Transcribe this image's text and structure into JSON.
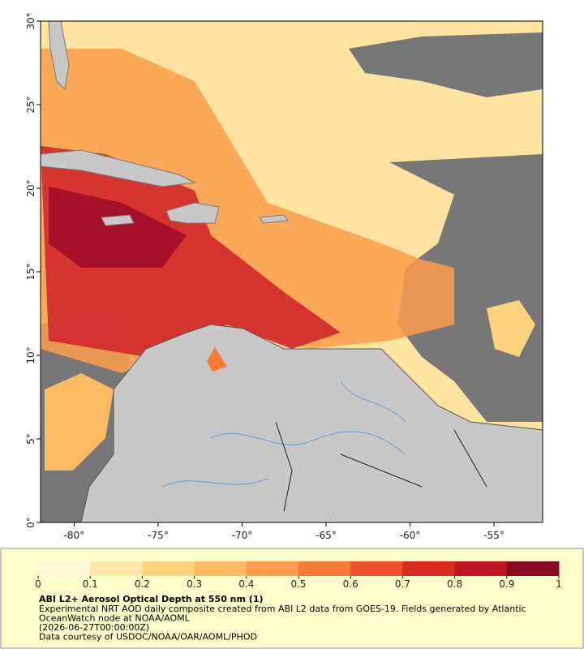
{
  "map": {
    "xlim": [
      -82,
      -52.1
    ],
    "ylim": [
      0,
      30
    ],
    "xticks": [
      {
        "value": -80,
        "label": "-80°"
      },
      {
        "value": -75,
        "label": "-75°"
      },
      {
        "value": -70,
        "label": "-70°"
      },
      {
        "value": -65,
        "label": "-65°"
      },
      {
        "value": -60,
        "label": "-60°"
      },
      {
        "value": -55,
        "label": "-55°"
      }
    ],
    "yticks": [
      {
        "value": 0,
        "label": "0°"
      },
      {
        "value": 5,
        "label": "5°"
      },
      {
        "value": 10,
        "label": "10°"
      },
      {
        "value": 15,
        "label": "15°"
      },
      {
        "value": 20,
        "label": "20°"
      },
      {
        "value": 25,
        "label": "25°"
      },
      {
        "value": 30,
        "label": "30°"
      }
    ]
  },
  "colorbar": {
    "lim": [
      0,
      1
    ],
    "ticks": [
      0,
      0.1,
      0.2,
      0.3,
      0.4,
      0.5,
      0.6,
      0.7,
      0.8,
      0.9,
      1
    ],
    "colors": [
      "#fff7d6",
      "#fee9a8",
      "#fdd27e",
      "#fdb862",
      "#fb9d4c",
      "#f77c3c",
      "#ee4f2c",
      "#db2a22",
      "#c11423",
      "#8c0a25"
    ]
  },
  "caption": {
    "title": "ABI L2+ Aerosol Optical Depth at 550 nm (1)",
    "lines": [
      "Experimental NRT AOD daily composite created from ABI L2 data from GOES-19. Fields generated by Atlantic",
      "OceanWatch node at NOAA/AOML",
      "(2026-06-27T00:00:00Z)",
      "Data courtesy of USDOC/NOAA/OAR/AOML/PHOD"
    ]
  }
}
